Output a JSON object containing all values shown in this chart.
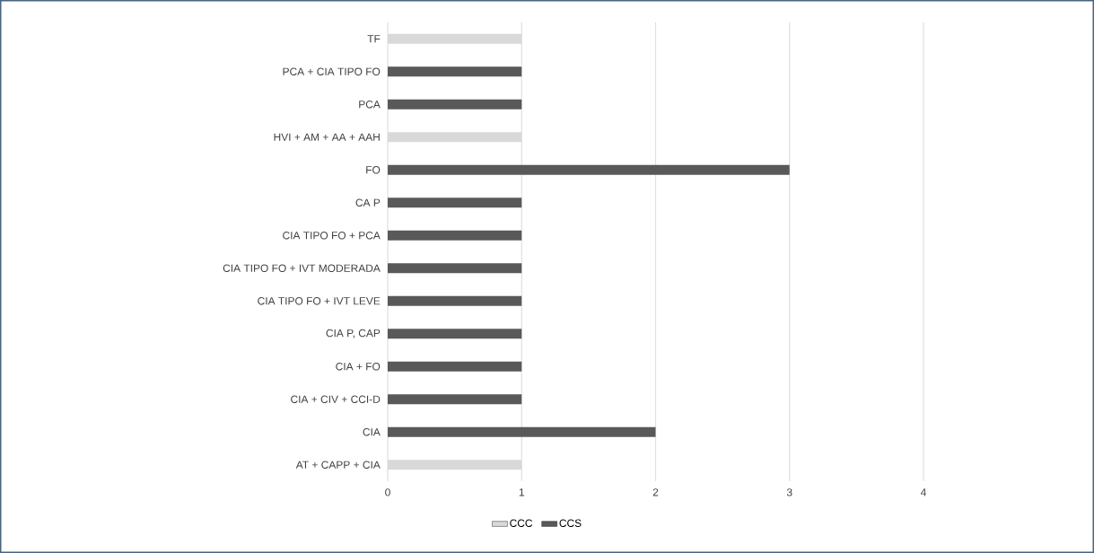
{
  "chart_data": {
    "type": "bar",
    "orientation": "horizontal",
    "categories": [
      "TF",
      "PCA + CIA TIPO FO",
      "PCA",
      "HVI + AM + AA + AAH",
      "FO",
      "CA P",
      "CIA TIPO FO + PCA",
      "CIA TIPO FO + IVT MODERADA",
      "CIA TIPO FO + IVT LEVE",
      "CIA P, CAP",
      "CIA + FO",
      "CIA + CIV + CCI-D",
      "CIA",
      "AT + CAPP + CIA"
    ],
    "series": [
      {
        "name": "CCC",
        "color": "#d9d9d9",
        "values": [
          1,
          null,
          null,
          1,
          null,
          null,
          null,
          null,
          null,
          null,
          null,
          null,
          null,
          1
        ]
      },
      {
        "name": "CCS",
        "color": "#595959",
        "values": [
          null,
          1,
          1,
          null,
          3,
          1,
          1,
          1,
          1,
          1,
          1,
          1,
          2,
          null
        ]
      }
    ],
    "xlim": [
      0,
      4
    ],
    "xticks": [
      0,
      1,
      2,
      3,
      4
    ],
    "grid": "x",
    "legend": "bottom"
  }
}
